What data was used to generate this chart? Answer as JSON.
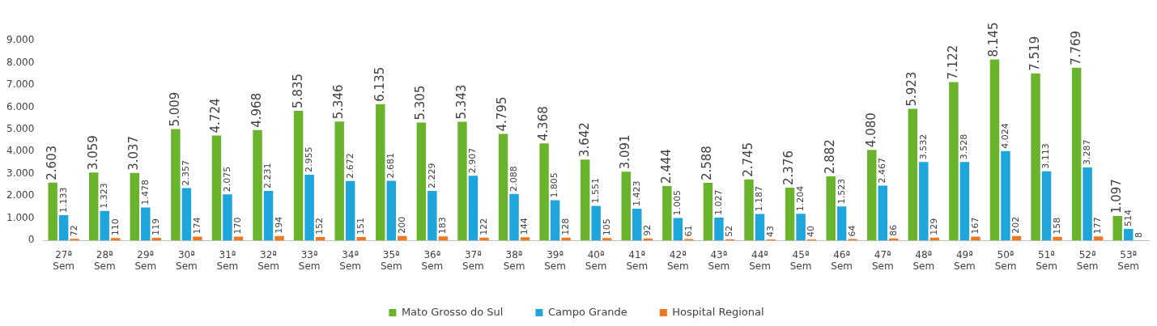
{
  "chart_data": {
    "type": "bar",
    "categories": [
      "27ª Sem",
      "28ª Sem",
      "29ª Sem",
      "30ª Sem",
      "31ª Sem",
      "32ª Sem",
      "33ª Sem",
      "34ª Sem",
      "35ª Sem",
      "36ª Sem",
      "37ª Sem",
      "38ª Sem",
      "39ª Sem",
      "40ª Sem",
      "41ª Sem",
      "42ª Sem",
      "43ª Sem",
      "44ª Sem",
      "45ª Sem",
      "46ª Sem",
      "47ª Sem",
      "48ª Sem",
      "49ª Sem",
      "50ª Sem",
      "51ª Sem",
      "52ª Sem",
      "53ª Sem"
    ],
    "series": [
      {
        "name": "Mato Grosso do Sul",
        "color": "#6ab42d",
        "values": [
          2603,
          3059,
          3037,
          5009,
          4724,
          4968,
          5835,
          5346,
          6135,
          5305,
          5343,
          4795,
          4368,
          3642,
          3091,
          2444,
          2588,
          2745,
          2376,
          2882,
          4080,
          5923,
          7122,
          8145,
          7519,
          7769,
          1097
        ],
        "value_labels": [
          "2.603",
          "3.059",
          "3.037",
          "5.009",
          "4.724",
          "4.968",
          "5.835",
          "5.346",
          "6.135",
          "5.305",
          "5.343",
          "4.795",
          "4.368",
          "3.642",
          "3.091",
          "2.444",
          "2.588",
          "2.745",
          "2.376",
          "2.882",
          "4.080",
          "5.923",
          "7.122",
          "8.145",
          "7.519",
          "7.769",
          "1.097"
        ]
      },
      {
        "name": "Campo Grande",
        "color": "#1ea5dc",
        "values": [
          1133,
          1323,
          1478,
          2357,
          2075,
          2231,
          2955,
          2672,
          2681,
          2229,
          2907,
          2088,
          1805,
          1551,
          1423,
          1005,
          1027,
          1187,
          1204,
          1523,
          2467,
          3532,
          3528,
          4024,
          3113,
          3287,
          514
        ],
        "value_labels": [
          "1.133",
          "1.323",
          "1.478",
          "2.357",
          "2.075",
          "2.231",
          "2.955",
          "2.672",
          "2.681",
          "2.229",
          "2.907",
          "2.088",
          "1.805",
          "1.551",
          "1.423",
          "1.005",
          "1.027",
          "1.187",
          "1.204",
          "1.523",
          "2.467",
          "3.532",
          "3.528",
          "4.024",
          "3.113",
          "3.287",
          "514"
        ]
      },
      {
        "name": "Hospital Regional",
        "color": "#f07820",
        "values": [
          72,
          110,
          119,
          174,
          170,
          194,
          152,
          151,
          200,
          183,
          122,
          144,
          128,
          105,
          92,
          61,
          52,
          43,
          40,
          64,
          86,
          129,
          167,
          202,
          158,
          177,
          8
        ],
        "value_labels": [
          "72",
          "110",
          "119",
          "174",
          "170",
          "194",
          "152",
          "151",
          "200",
          "183",
          "122",
          "144",
          "128",
          "105",
          "92",
          "61",
          "52",
          "43",
          "40",
          "64",
          "86",
          "129",
          "167",
          "202",
          "158",
          "177",
          "8"
        ]
      }
    ],
    "ylim": [
      0,
      9000
    ],
    "yticks": [
      0,
      {
        "value": 1000,
        "label": "1.000"
      },
      {
        "value": 2000,
        "label": "2.000"
      },
      {
        "value": 3000,
        "label": "3.000"
      },
      {
        "value": 4000,
        "label": "4.000"
      },
      {
        "value": 5000,
        "label": "5.000"
      },
      {
        "value": 6000,
        "label": "6.000"
      },
      {
        "value": 7000,
        "label": "7.000"
      },
      {
        "value": 8000,
        "label": "8.000"
      },
      {
        "value": 9000,
        "label": "9.000"
      }
    ],
    "grid": false,
    "legend": "bottom"
  }
}
